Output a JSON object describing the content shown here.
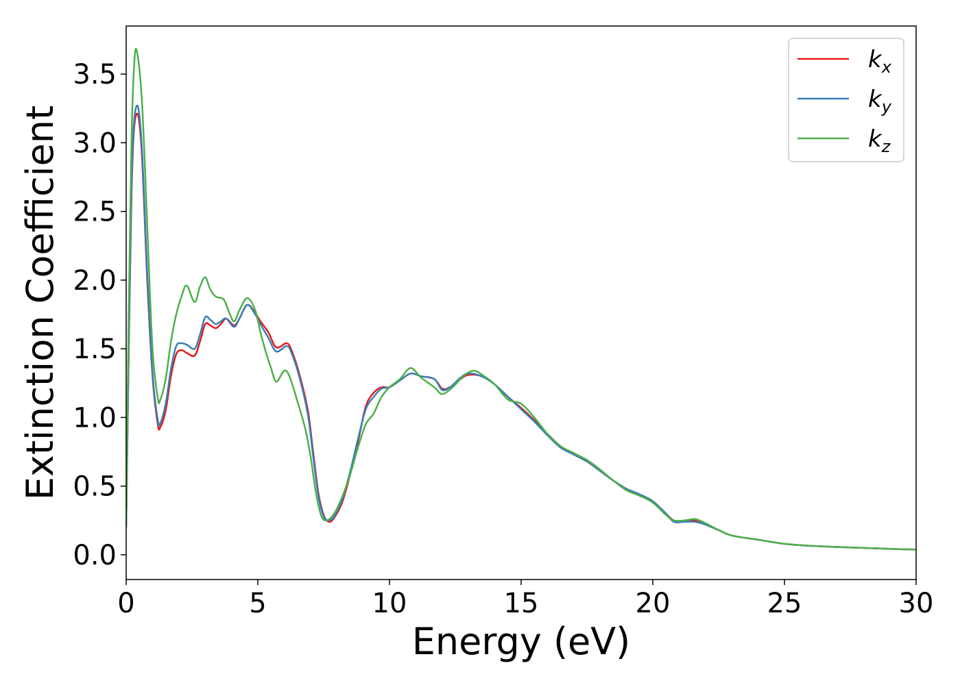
{
  "chart_data": {
    "type": "line",
    "title": "",
    "xlabel": "Energy (eV)",
    "ylabel": "Extinction Coefficient",
    "xlim": [
      0,
      30
    ],
    "ylim": [
      -0.18,
      3.85
    ],
    "xticks": [
      0,
      5,
      10,
      15,
      20,
      25,
      30
    ],
    "yticks": [
      0.0,
      0.5,
      1.0,
      1.5,
      2.0,
      2.5,
      3.0,
      3.5
    ],
    "grid": false,
    "legend_position": "top-right",
    "series": [
      {
        "name": "k",
        "subscript": "x",
        "color": "#e41a1c",
        "points": [
          [
            0,
            0.2
          ],
          [
            0.1,
            1.5
          ],
          [
            0.2,
            2.6
          ],
          [
            0.3,
            3.1
          ],
          [
            0.45,
            3.2
          ],
          [
            0.6,
            2.9
          ],
          [
            0.8,
            2.0
          ],
          [
            1.0,
            1.3
          ],
          [
            1.2,
            0.95
          ],
          [
            1.3,
            0.93
          ],
          [
            1.5,
            1.05
          ],
          [
            1.7,
            1.3
          ],
          [
            1.9,
            1.46
          ],
          [
            2.1,
            1.49
          ],
          [
            2.3,
            1.47
          ],
          [
            2.6,
            1.45
          ],
          [
            2.8,
            1.55
          ],
          [
            3.0,
            1.68
          ],
          [
            3.2,
            1.67
          ],
          [
            3.4,
            1.65
          ],
          [
            3.6,
            1.68
          ],
          [
            3.8,
            1.72
          ],
          [
            4.1,
            1.67
          ],
          [
            4.3,
            1.72
          ],
          [
            4.6,
            1.82
          ],
          [
            4.9,
            1.76
          ],
          [
            5.1,
            1.7
          ],
          [
            5.4,
            1.62
          ],
          [
            5.7,
            1.51
          ],
          [
            6.1,
            1.54
          ],
          [
            6.3,
            1.48
          ],
          [
            6.6,
            1.3
          ],
          [
            6.9,
            1.05
          ],
          [
            7.1,
            0.75
          ],
          [
            7.3,
            0.45
          ],
          [
            7.5,
            0.29
          ],
          [
            7.7,
            0.24
          ],
          [
            7.9,
            0.27
          ],
          [
            8.2,
            0.38
          ],
          [
            8.5,
            0.58
          ],
          [
            8.8,
            0.82
          ],
          [
            9.1,
            1.08
          ],
          [
            9.4,
            1.18
          ],
          [
            9.7,
            1.22
          ],
          [
            10.0,
            1.22
          ],
          [
            10.4,
            1.27
          ],
          [
            10.8,
            1.32
          ],
          [
            11.2,
            1.3
          ],
          [
            11.7,
            1.28
          ],
          [
            12.0,
            1.21
          ],
          [
            12.3,
            1.22
          ],
          [
            12.7,
            1.28
          ],
          [
            13.0,
            1.31
          ],
          [
            13.5,
            1.3
          ],
          [
            14.0,
            1.24
          ],
          [
            14.5,
            1.15
          ],
          [
            15.0,
            1.07
          ],
          [
            15.5,
            0.98
          ],
          [
            16.0,
            0.88
          ],
          [
            16.5,
            0.79
          ],
          [
            17.0,
            0.73
          ],
          [
            17.5,
            0.68
          ],
          [
            18.0,
            0.61
          ],
          [
            18.5,
            0.54
          ],
          [
            19.0,
            0.48
          ],
          [
            19.5,
            0.44
          ],
          [
            20.0,
            0.39
          ],
          [
            20.5,
            0.3
          ],
          [
            20.8,
            0.25
          ],
          [
            21.2,
            0.24
          ],
          [
            21.6,
            0.25
          ],
          [
            22.0,
            0.22
          ],
          [
            22.5,
            0.18
          ],
          [
            23.0,
            0.14
          ],
          [
            24.0,
            0.11
          ],
          [
            25.0,
            0.08
          ],
          [
            26.0,
            0.065
          ],
          [
            27.0,
            0.057
          ],
          [
            28.0,
            0.05
          ],
          [
            29.0,
            0.043
          ],
          [
            30.0,
            0.038
          ]
        ]
      },
      {
        "name": "k",
        "subscript": "y",
        "color": "#377eb8",
        "points": [
          [
            0,
            0.2
          ],
          [
            0.1,
            1.55
          ],
          [
            0.2,
            2.65
          ],
          [
            0.3,
            3.15
          ],
          [
            0.45,
            3.26
          ],
          [
            0.6,
            2.95
          ],
          [
            0.8,
            2.05
          ],
          [
            1.0,
            1.32
          ],
          [
            1.2,
            0.98
          ],
          [
            1.3,
            0.96
          ],
          [
            1.5,
            1.1
          ],
          [
            1.7,
            1.35
          ],
          [
            1.9,
            1.52
          ],
          [
            2.1,
            1.54
          ],
          [
            2.3,
            1.53
          ],
          [
            2.6,
            1.5
          ],
          [
            2.8,
            1.6
          ],
          [
            3.0,
            1.73
          ],
          [
            3.2,
            1.71
          ],
          [
            3.4,
            1.68
          ],
          [
            3.6,
            1.7
          ],
          [
            3.8,
            1.72
          ],
          [
            4.1,
            1.66
          ],
          [
            4.3,
            1.72
          ],
          [
            4.6,
            1.82
          ],
          [
            4.9,
            1.75
          ],
          [
            5.1,
            1.68
          ],
          [
            5.4,
            1.58
          ],
          [
            5.7,
            1.48
          ],
          [
            6.1,
            1.52
          ],
          [
            6.3,
            1.46
          ],
          [
            6.6,
            1.28
          ],
          [
            6.9,
            1.02
          ],
          [
            7.1,
            0.72
          ],
          [
            7.3,
            0.43
          ],
          [
            7.5,
            0.28
          ],
          [
            7.7,
            0.25
          ],
          [
            7.9,
            0.28
          ],
          [
            8.2,
            0.4
          ],
          [
            8.5,
            0.6
          ],
          [
            8.8,
            0.84
          ],
          [
            9.1,
            1.06
          ],
          [
            9.4,
            1.15
          ],
          [
            9.7,
            1.21
          ],
          [
            10.0,
            1.22
          ],
          [
            10.4,
            1.27
          ],
          [
            10.8,
            1.32
          ],
          [
            11.2,
            1.3
          ],
          [
            11.7,
            1.28
          ],
          [
            12.0,
            1.2
          ],
          [
            12.3,
            1.22
          ],
          [
            12.7,
            1.29
          ],
          [
            13.0,
            1.32
          ],
          [
            13.5,
            1.3
          ],
          [
            14.0,
            1.24
          ],
          [
            14.5,
            1.15
          ],
          [
            15.0,
            1.06
          ],
          [
            15.5,
            0.97
          ],
          [
            16.0,
            0.87
          ],
          [
            16.5,
            0.78
          ],
          [
            17.0,
            0.73
          ],
          [
            17.5,
            0.68
          ],
          [
            18.0,
            0.61
          ],
          [
            18.5,
            0.54
          ],
          [
            19.0,
            0.48
          ],
          [
            19.5,
            0.44
          ],
          [
            20.0,
            0.39
          ],
          [
            20.5,
            0.3
          ],
          [
            20.8,
            0.24
          ],
          [
            21.2,
            0.24
          ],
          [
            21.6,
            0.24
          ],
          [
            22.0,
            0.22
          ],
          [
            22.5,
            0.18
          ],
          [
            23.0,
            0.14
          ],
          [
            24.0,
            0.11
          ],
          [
            25.0,
            0.08
          ],
          [
            26.0,
            0.065
          ],
          [
            27.0,
            0.057
          ],
          [
            28.0,
            0.05
          ],
          [
            29.0,
            0.043
          ],
          [
            30.0,
            0.038
          ]
        ]
      },
      {
        "name": "k",
        "subscript": "z",
        "color": "#4daf4a",
        "points": [
          [
            0,
            0.2
          ],
          [
            0.1,
            1.8
          ],
          [
            0.2,
            3.0
          ],
          [
            0.3,
            3.55
          ],
          [
            0.4,
            3.67
          ],
          [
            0.6,
            3.3
          ],
          [
            0.8,
            2.4
          ],
          [
            1.0,
            1.5
          ],
          [
            1.2,
            1.14
          ],
          [
            1.3,
            1.13
          ],
          [
            1.5,
            1.28
          ],
          [
            1.7,
            1.55
          ],
          [
            1.9,
            1.75
          ],
          [
            2.1,
            1.88
          ],
          [
            2.3,
            1.96
          ],
          [
            2.6,
            1.84
          ],
          [
            2.8,
            1.95
          ],
          [
            3.0,
            2.02
          ],
          [
            3.2,
            1.93
          ],
          [
            3.4,
            1.88
          ],
          [
            3.7,
            1.86
          ],
          [
            3.9,
            1.77
          ],
          [
            4.1,
            1.7
          ],
          [
            4.3,
            1.78
          ],
          [
            4.6,
            1.87
          ],
          [
            4.9,
            1.78
          ],
          [
            5.1,
            1.62
          ],
          [
            5.3,
            1.48
          ],
          [
            5.5,
            1.36
          ],
          [
            5.7,
            1.26
          ],
          [
            6.0,
            1.34
          ],
          [
            6.2,
            1.3
          ],
          [
            6.5,
            1.12
          ],
          [
            6.8,
            0.92
          ],
          [
            7.0,
            0.72
          ],
          [
            7.2,
            0.46
          ],
          [
            7.4,
            0.29
          ],
          [
            7.6,
            0.25
          ],
          [
            7.9,
            0.3
          ],
          [
            8.2,
            0.42
          ],
          [
            8.5,
            0.58
          ],
          [
            8.8,
            0.78
          ],
          [
            9.1,
            0.95
          ],
          [
            9.4,
            1.03
          ],
          [
            9.7,
            1.15
          ],
          [
            10.0,
            1.22
          ],
          [
            10.4,
            1.28
          ],
          [
            10.8,
            1.36
          ],
          [
            11.2,
            1.29
          ],
          [
            11.7,
            1.22
          ],
          [
            12.0,
            1.17
          ],
          [
            12.4,
            1.22
          ],
          [
            12.8,
            1.3
          ],
          [
            13.2,
            1.34
          ],
          [
            13.6,
            1.3
          ],
          [
            14.0,
            1.24
          ],
          [
            14.5,
            1.13
          ],
          [
            15.0,
            1.1
          ],
          [
            15.5,
            1.0
          ],
          [
            16.0,
            0.88
          ],
          [
            16.5,
            0.79
          ],
          [
            17.0,
            0.74
          ],
          [
            17.5,
            0.69
          ],
          [
            18.0,
            0.62
          ],
          [
            18.5,
            0.54
          ],
          [
            19.0,
            0.47
          ],
          [
            19.5,
            0.43
          ],
          [
            20.0,
            0.38
          ],
          [
            20.5,
            0.29
          ],
          [
            20.8,
            0.25
          ],
          [
            21.2,
            0.25
          ],
          [
            21.6,
            0.26
          ],
          [
            22.0,
            0.23
          ],
          [
            22.5,
            0.18
          ],
          [
            23.0,
            0.14
          ],
          [
            24.0,
            0.11
          ],
          [
            25.0,
            0.08
          ],
          [
            26.0,
            0.065
          ],
          [
            27.0,
            0.057
          ],
          [
            28.0,
            0.05
          ],
          [
            29.0,
            0.043
          ],
          [
            30.0,
            0.038
          ]
        ]
      }
    ]
  }
}
